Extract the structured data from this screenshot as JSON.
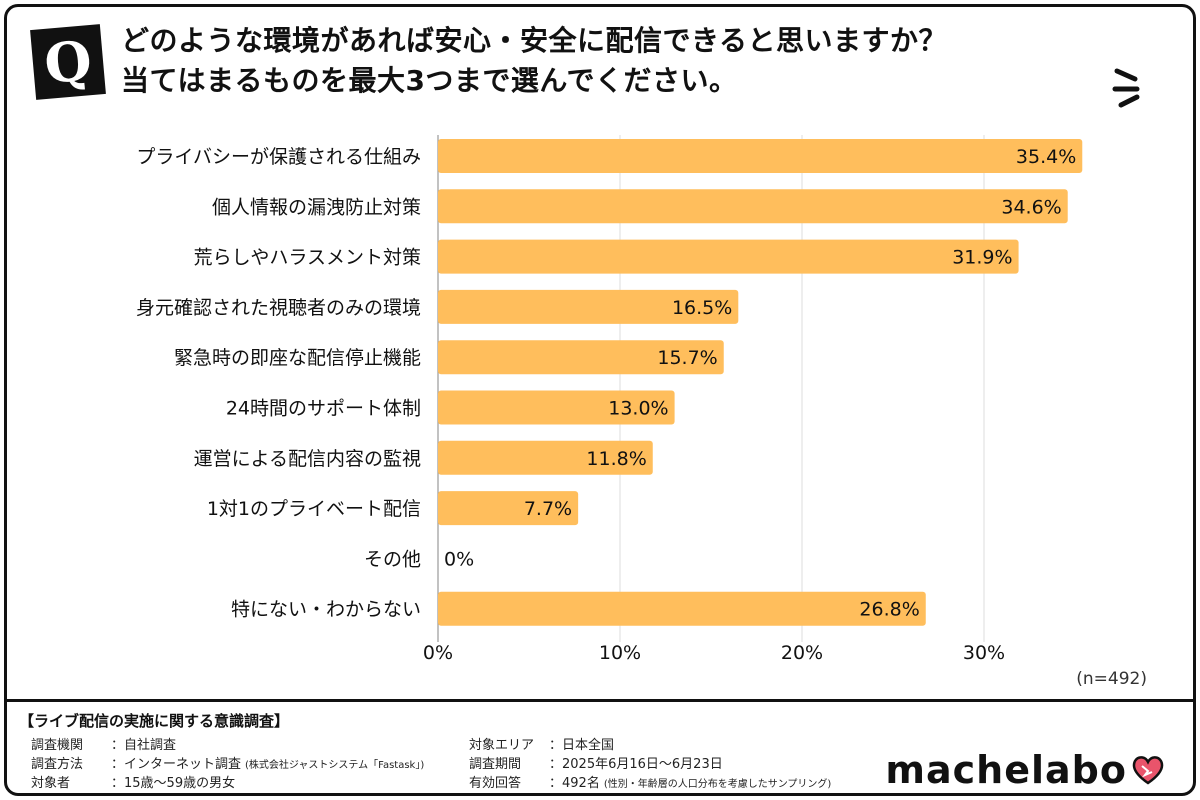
{
  "header": {
    "q_mark": "Q",
    "title_line1": "どのような環境があれば安心・安全に配信できると思いますか？",
    "title_line2": "当てはまるものを最大3つまで選んでください。"
  },
  "chart_data": {
    "type": "bar",
    "orientation": "horizontal",
    "categories": [
      "プライバシーが保護される仕組み",
      "個人情報の漏洩防止対策",
      "荒らしやハラスメント対策",
      "身元確認された視聴者のみの環境",
      "緊急時の即座な配信停止機能",
      "24時間のサポート体制",
      "運営による配信内容の監視",
      "1対1のプライベート配信",
      "その他",
      "特にない・わからない"
    ],
    "values": [
      35.4,
      34.6,
      31.9,
      16.5,
      15.7,
      13.0,
      11.8,
      7.7,
      0,
      26.8
    ],
    "value_labels": [
      "35.4%",
      "34.6%",
      "31.9%",
      "16.5%",
      "15.7%",
      "13.0%",
      "11.8%",
      "7.7%",
      "0%",
      "26.8%"
    ],
    "x_ticks": [
      0,
      10,
      20,
      30
    ],
    "x_tick_labels": [
      "0%",
      "10%",
      "20%",
      "30%"
    ],
    "xlim": [
      0,
      36
    ],
    "grid": true,
    "bar_color": "#FFBE5C",
    "n_label": "(n=492)"
  },
  "footer": {
    "survey_title": "【ライブ配信の実施に関する意識調査】",
    "left": [
      {
        "key": "調査機関",
        "value": "：自社調査",
        "note": ""
      },
      {
        "key": "調査方法",
        "value": "：インターネット調査",
        "note": "(株式会社ジャストシステム「Fastask」)"
      },
      {
        "key": "対象者",
        "value": "：15歳～59歳の男女",
        "note": ""
      }
    ],
    "right": [
      {
        "key": "対象エリア",
        "value": "：日本全国",
        "note": ""
      },
      {
        "key": "調査期間",
        "value": "：2025年6月16日～6月23日",
        "note": ""
      },
      {
        "key": "有効回答",
        "value": "：492名",
        "note": "(性別・年齢層の人口分布を考慮したサンプリング)"
      }
    ],
    "brand": "machelabo",
    "brand_heart_color": "#E9546B"
  }
}
